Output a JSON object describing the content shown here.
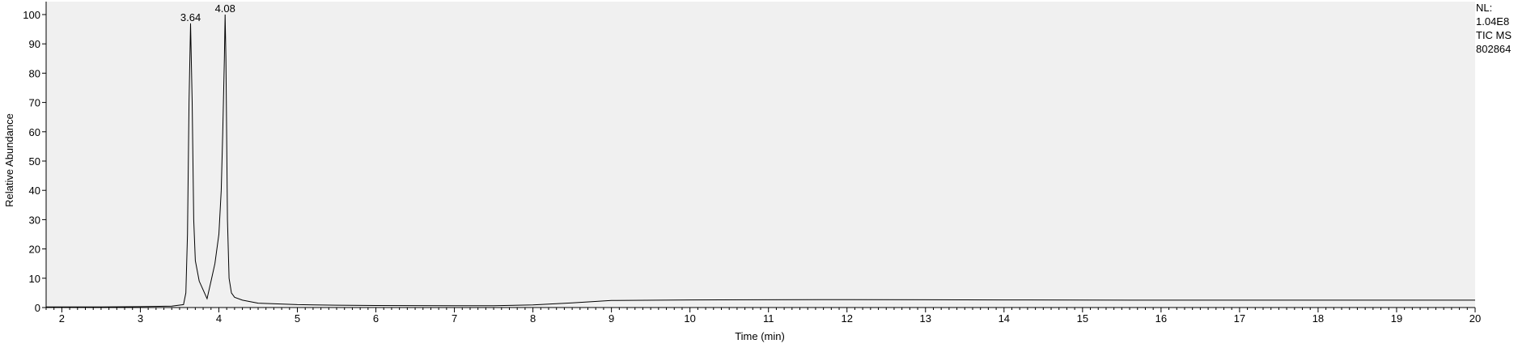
{
  "side_info": [
    "NL:",
    "1.04E8",
    "TIC  MS",
    "802864"
  ],
  "colors": {
    "plot_bg": "#f0f0f0",
    "line": "#000000",
    "axis": "#000000"
  },
  "chart_data": {
    "type": "line",
    "xlabel": "Time (min)",
    "ylabel": "Relative Abundance",
    "xlim": [
      1.8,
      20
    ],
    "ylim": [
      0,
      100
    ],
    "x_ticks": [
      2,
      3,
      4,
      5,
      6,
      7,
      8,
      9,
      10,
      11,
      12,
      13,
      14,
      15,
      16,
      17,
      18,
      19,
      20
    ],
    "y_ticks": [
      0,
      10,
      20,
      30,
      40,
      50,
      60,
      70,
      80,
      90,
      100
    ],
    "grid": false,
    "peak_labels": [
      {
        "x": 3.64,
        "y": 97,
        "text": "3.64"
      },
      {
        "x": 4.08,
        "y": 100,
        "text": "4.08"
      }
    ],
    "series": [
      {
        "x": [
          1.8,
          2.5,
          3.0,
          3.4,
          3.55,
          3.58,
          3.6,
          3.62,
          3.64,
          3.66,
          3.68,
          3.7,
          3.75,
          3.8,
          3.85,
          3.9,
          3.95,
          4.0,
          4.03,
          4.05,
          4.07,
          4.08,
          4.09,
          4.11,
          4.13,
          4.16,
          4.2,
          4.3,
          4.5,
          5.0,
          5.5,
          6.0,
          7.0,
          7.5,
          8.0,
          8.5,
          9.0,
          10.0,
          12.0,
          14.0,
          16.0,
          18.0,
          20.0
        ],
        "y": [
          0.2,
          0.2,
          0.3,
          0.5,
          1.0,
          5.0,
          25.0,
          70.0,
          97.0,
          70.0,
          30.0,
          16.0,
          9.0,
          6.0,
          3.0,
          9.0,
          15.0,
          25.0,
          40.0,
          60.0,
          85.0,
          100.0,
          85.0,
          30.0,
          10.0,
          5.0,
          3.5,
          2.5,
          1.5,
          1.0,
          0.8,
          0.7,
          0.6,
          0.6,
          0.9,
          1.6,
          2.4,
          2.6,
          2.7,
          2.6,
          2.5,
          2.5,
          2.5
        ]
      }
    ]
  }
}
